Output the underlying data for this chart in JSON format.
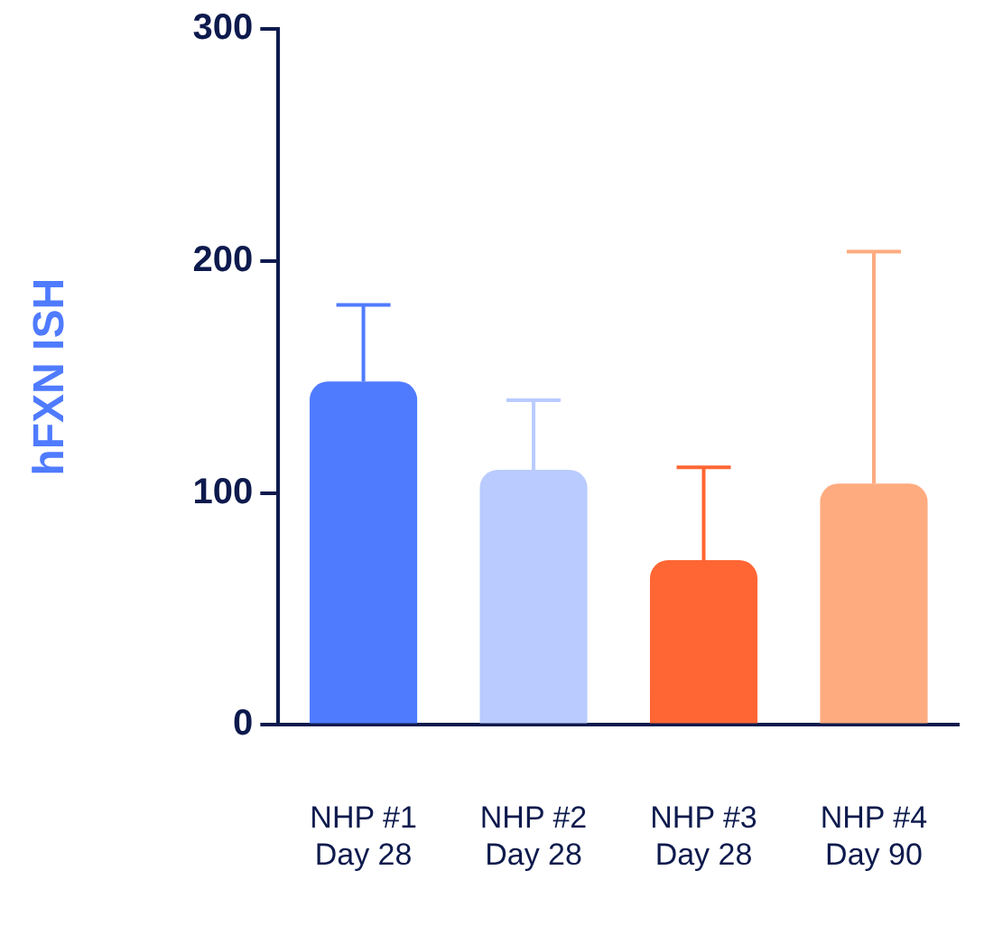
{
  "chart_data": {
    "type": "bar",
    "ylabel": "hFXN ISH",
    "categories": [
      "NHP #1\nDay 28",
      "NHP #2\nDay 28",
      "NHP #3\nDay 28",
      "NHP #4\nDay 90"
    ],
    "values": [
      148,
      110,
      71,
      104
    ],
    "colors": [
      "#4f7bff",
      "#b9cbff",
      "#ff6633",
      "#ffab80"
    ],
    "errors": [
      [
        148,
        181
      ],
      [
        110,
        140
      ],
      [
        71,
        111
      ],
      [
        104,
        204
      ]
    ],
    "ylim": [
      0,
      300
    ],
    "yticks": [
      0,
      100,
      200,
      300
    ],
    "grid": false,
    "legend": false
  }
}
